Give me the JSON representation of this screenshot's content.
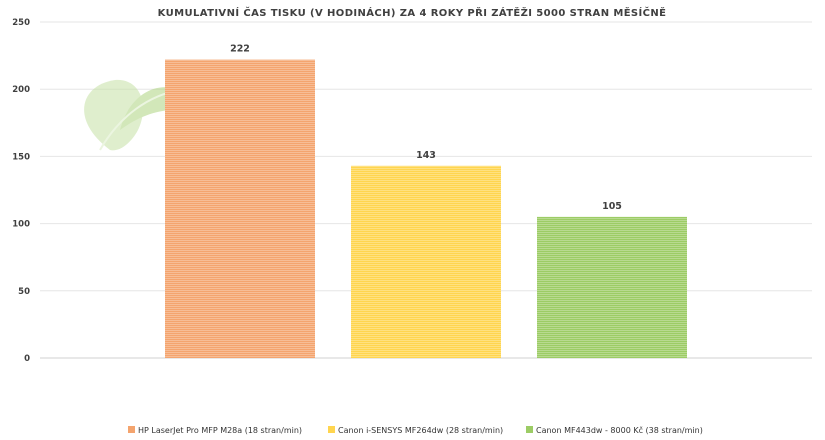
{
  "chart_data": {
    "type": "bar",
    "title": "KUMULATIVNÍ ČAS TISKU (V HODINÁCH) ZA 4 ROKY PŘI ZÁTĚŽI 5000 STRAN MĚSÍČNĚ",
    "categories": [
      "HP LaserJet Pro MFP M28a (18 stran/min)",
      "Canon i-SENSYS MF264dw (28 stran/min)",
      "Canon MF443dw - 8000 Kč (38 stran/min)"
    ],
    "values": [
      222,
      143,
      105
    ],
    "colors": [
      "#f4a46e",
      "#ffd54f",
      "#9ccc65"
    ],
    "ylim": [
      0,
      250
    ],
    "yticks": [
      "0",
      "50",
      "100",
      "150",
      "200",
      "250"
    ],
    "xlabel": "",
    "ylabel": "",
    "grid": true,
    "legend_position": "bottom",
    "data_labels": true
  },
  "watermark": {
    "icon": "leaf-logo-icon"
  }
}
